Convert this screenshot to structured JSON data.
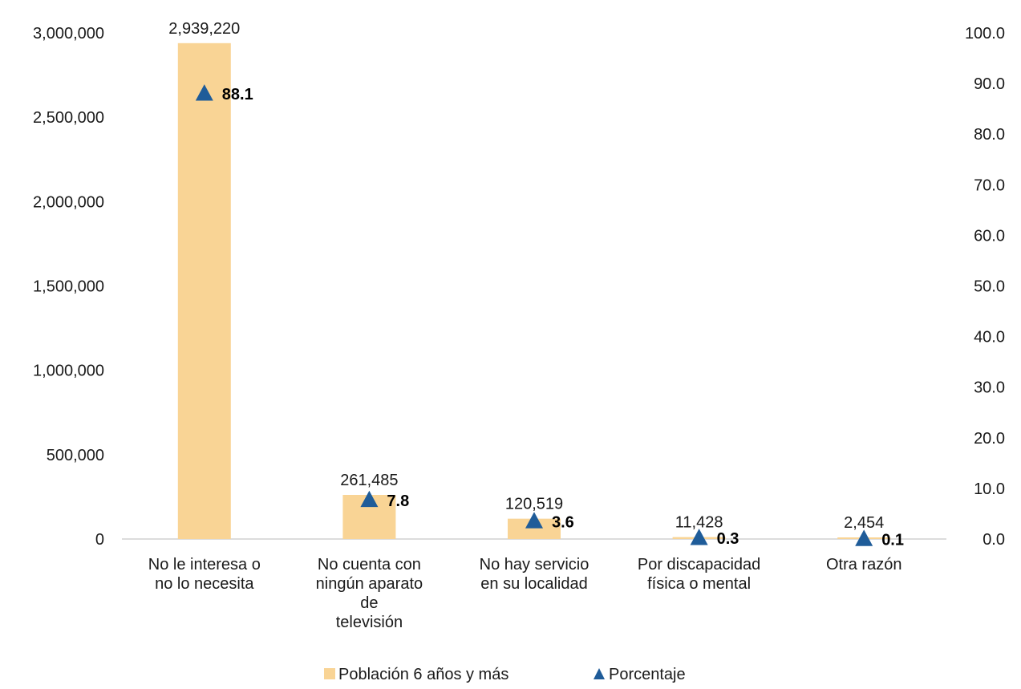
{
  "chart_data": {
    "type": "bar",
    "categories": [
      [
        "No le interesa o",
        "no lo necesita"
      ],
      [
        "No cuenta con",
        "ningún aparato",
        "de",
        "televisión"
      ],
      [
        "No hay servicio",
        "en su localidad"
      ],
      [
        "Por discapacidad",
        "física o mental"
      ],
      [
        "Otra razón"
      ]
    ],
    "series": [
      {
        "name": "Población 6 años y más",
        "type": "bar",
        "axis": "left",
        "values": [
          2939220,
          261485,
          120519,
          11428,
          2454
        ],
        "labels": [
          "2,939,220",
          "261,485",
          "120,519",
          "11,428",
          "2,454"
        ],
        "color": "#F9D495"
      },
      {
        "name": "Porcentaje",
        "type": "scatter",
        "marker": "triangle",
        "axis": "right",
        "values": [
          88.1,
          7.8,
          3.6,
          0.3,
          0.1
        ],
        "labels": [
          "88.1",
          "7.8",
          "3.6",
          "0.3",
          "0.1"
        ],
        "color": "#1F5C99"
      }
    ],
    "y_left": {
      "range": [
        0,
        3000000
      ],
      "ticks": [
        "0",
        "500,000",
        "1,000,000",
        "1,500,000",
        "2,000,000",
        "2,500,000",
        "3,000,000"
      ],
      "tick_values": [
        0,
        500000,
        1000000,
        1500000,
        2000000,
        2500000,
        3000000
      ]
    },
    "y_right": {
      "range": [
        0,
        100
      ],
      "ticks": [
        "0.0",
        "10.0",
        "20.0",
        "30.0",
        "40.0",
        "50.0",
        "60.0",
        "70.0",
        "80.0",
        "90.0",
        "100.0"
      ],
      "tick_values": [
        0,
        10,
        20,
        30,
        40,
        50,
        60,
        70,
        80,
        90,
        100
      ]
    },
    "grid": false,
    "legend_position": "bottom",
    "colors": {
      "bar": "#F9D495",
      "marker": "#1F5C99",
      "axis": "#d0d0d0"
    }
  }
}
